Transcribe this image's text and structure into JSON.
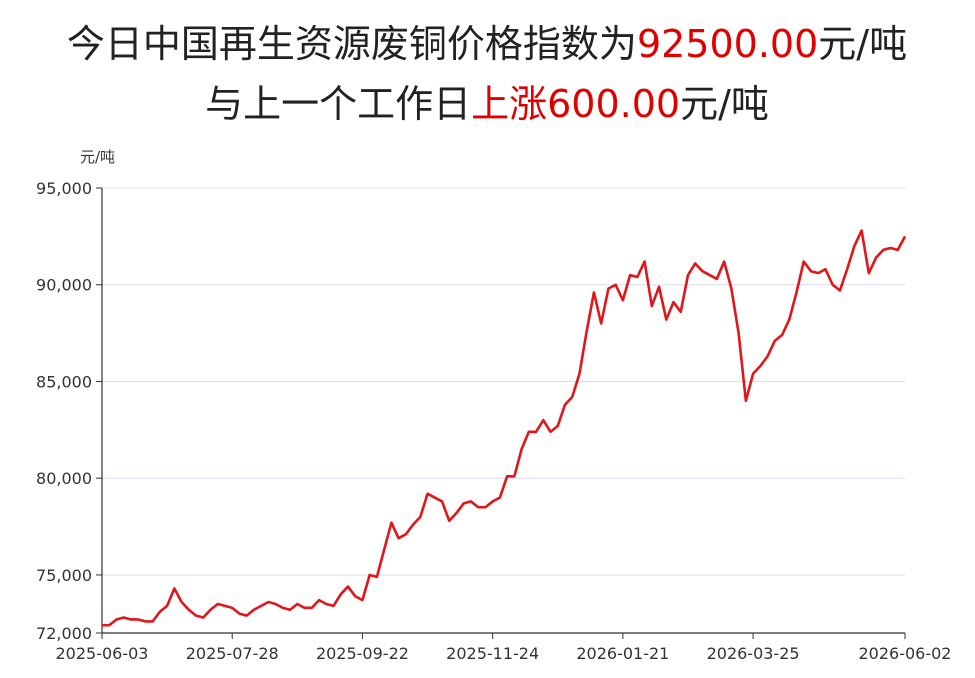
{
  "chart_data": {
    "type": "line",
    "title_lines": [
      [
        {
          "text": "今日中国再生资源废铜价格指数为"
        },
        {
          "text": "92500.00",
          "highlight": true
        },
        {
          "text": "元/吨"
        }
      ],
      [
        {
          "text": "与上一个工作日"
        },
        {
          "text": "上涨",
          "highlight": true
        },
        {
          "text": "600.00",
          "highlight": true
        },
        {
          "text": "元/吨"
        }
      ]
    ],
    "title_color": "#222222",
    "highlight_color": "#e00000",
    "ylabel": "元/吨",
    "categories": [
      "2025-06-03",
      null,
      null,
      null,
      null,
      null,
      null,
      null,
      null,
      null,
      null,
      null,
      null,
      null,
      null,
      null,
      null,
      null,
      "2025-07-28",
      null,
      null,
      null,
      null,
      null,
      null,
      null,
      null,
      null,
      null,
      null,
      null,
      null,
      null,
      null,
      null,
      null,
      "2025-09-22",
      null,
      null,
      null,
      null,
      null,
      null,
      null,
      null,
      null,
      null,
      null,
      null,
      null,
      null,
      null,
      null,
      null,
      "2025-11-24",
      null,
      null,
      null,
      null,
      null,
      null,
      null,
      null,
      null,
      null,
      null,
      null,
      null,
      null,
      null,
      null,
      null,
      "2026-01-21",
      null,
      null,
      null,
      null,
      null,
      null,
      null,
      null,
      null,
      null,
      null,
      null,
      null,
      null,
      null,
      null,
      null,
      "2026-03-25",
      null,
      null,
      null,
      null,
      null,
      null,
      null,
      null,
      null,
      null,
      null,
      null,
      null,
      null,
      null,
      null,
      null,
      null,
      null,
      null,
      "2026-06-02"
    ],
    "values": [
      72400,
      72400,
      72700,
      72800,
      72700,
      72700,
      72600,
      72600,
      73100,
      73400,
      74300,
      73600,
      73200,
      72900,
      72800,
      73200,
      73500,
      73400,
      73300,
      73000,
      72900,
      73200,
      73400,
      73600,
      73500,
      73300,
      73200,
      73500,
      73300,
      73300,
      73700,
      73500,
      73400,
      74000,
      74400,
      73900,
      73700,
      75000,
      74900,
      76300,
      77700,
      76900,
      77100,
      77600,
      78000,
      79200,
      79000,
      78800,
      77800,
      78200,
      78700,
      78800,
      78500,
      78500,
      78800,
      79000,
      80100,
      80100,
      81500,
      82400,
      82400,
      83000,
      82400,
      82700,
      83800,
      84200,
      85400,
      87600,
      89600,
      88000,
      89800,
      90000,
      89200,
      90500,
      90400,
      91200,
      88900,
      89900,
      88200,
      89100,
      88600,
      90500,
      91100,
      90700,
      90500,
      90300,
      91200,
      89800,
      87500,
      84000,
      85400,
      85800,
      86300,
      87100,
      87400,
      88200,
      89600,
      91200,
      90700,
      90600,
      90800,
      90000,
      89700,
      90800,
      92000,
      92800,
      90600,
      91400,
      91800,
      91900,
      91800,
      92500
    ],
    "color": "#e0161b",
    "ylim": [
      72000,
      95000
    ],
    "yticks": [
      {
        "value": 72000,
        "label": "72,000"
      },
      {
        "value": 75000,
        "label": "75,000"
      },
      {
        "value": 80000,
        "label": "80,000"
      },
      {
        "value": 85000,
        "label": "85,000"
      },
      {
        "value": 90000,
        "label": "90,000"
      },
      {
        "value": 95000,
        "label": "95,000"
      }
    ],
    "grid": true
  }
}
